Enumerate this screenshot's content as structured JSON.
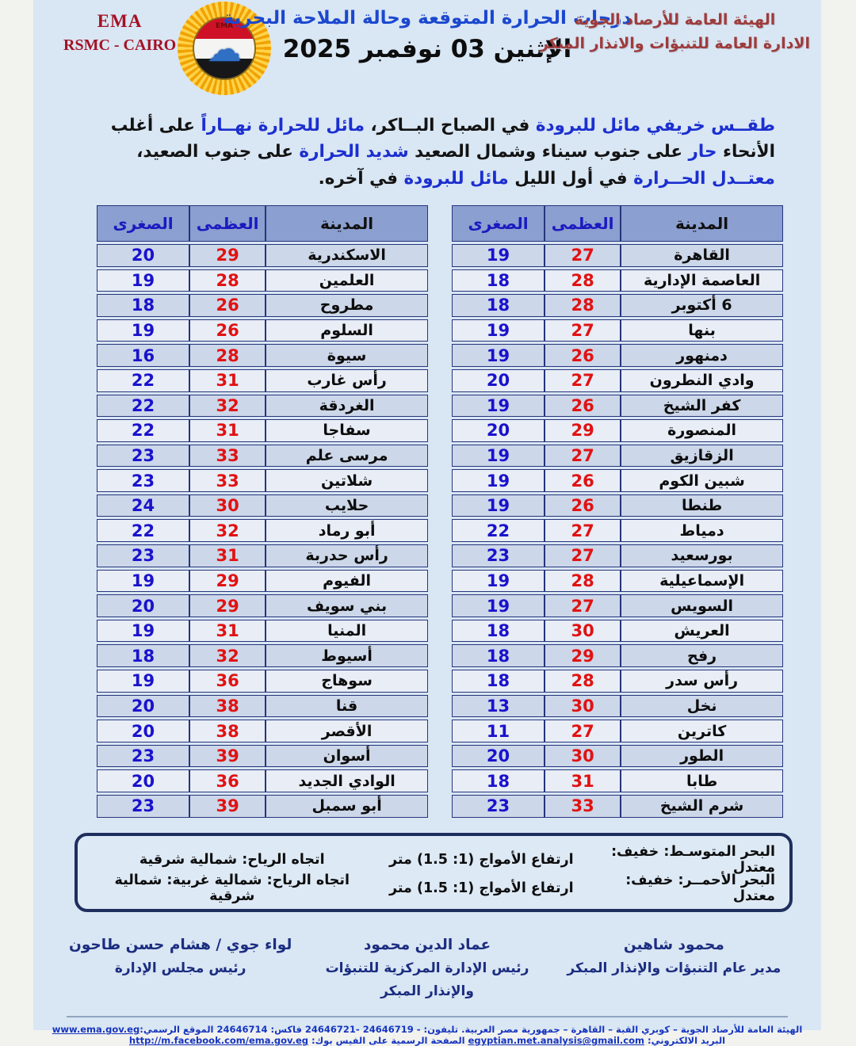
{
  "header": {
    "ema_label": "EMA",
    "rsmc_label": "RSMC - CAIRO",
    "logo_text": "EMA",
    "title": "درجات الحرارة المتوقعة وحالة الملاحة البحرية",
    "date": "الإثنين 03 نوفمبر 2025",
    "org_line1": "الهيئة العامة للأرصاد الجوية",
    "org_line2": "الادارة العامة للتنبؤات والانذار المبكر"
  },
  "forecast": {
    "segments": [
      {
        "text": "طقــس خريفي مائل للبرودة ",
        "color": "blue"
      },
      {
        "text": "في الصباح البــاكر، ",
        "color": "black"
      },
      {
        "text": "مائل للحرارة نهــاراً ",
        "color": "blue"
      },
      {
        "text": "على أغلب الأنحاء ",
        "color": "black"
      },
      {
        "text": "حار ",
        "color": "blue"
      },
      {
        "text": "على جنوب سيناء وشمال الصعيد ",
        "color": "black"
      },
      {
        "text": "شديد الحرارة ",
        "color": "blue"
      },
      {
        "text": "على جنوب الصعيد، ",
        "color": "black"
      },
      {
        "text": "معتــدل الحــرارة ",
        "color": "blue"
      },
      {
        "text": "في أول الليل ",
        "color": "black"
      },
      {
        "text": "مائل للبرودة ",
        "color": "blue"
      },
      {
        "text": "في آخره.",
        "color": "black"
      }
    ]
  },
  "tables": {
    "headers": {
      "city": "المدينة",
      "max": "العظمى",
      "min": "الصغرى"
    },
    "right_table": {
      "rows": [
        {
          "city": "القاهرة",
          "max": 27,
          "min": 19
        },
        {
          "city": "العاصمة الإدارية",
          "max": 28,
          "min": 18
        },
        {
          "city": "6 أكتوبر",
          "max": 28,
          "min": 18
        },
        {
          "city": "بنها",
          "max": 27,
          "min": 19
        },
        {
          "city": "دمنهور",
          "max": 26,
          "min": 19
        },
        {
          "city": "وادي النطرون",
          "max": 27,
          "min": 20
        },
        {
          "city": "كفر الشيخ",
          "max": 26,
          "min": 19
        },
        {
          "city": "المنصورة",
          "max": 29,
          "min": 20
        },
        {
          "city": "الزقازيق",
          "max": 27,
          "min": 19
        },
        {
          "city": "شبين الكوم",
          "max": 26,
          "min": 19
        },
        {
          "city": "طنطا",
          "max": 26,
          "min": 19
        },
        {
          "city": "دمياط",
          "max": 27,
          "min": 22
        },
        {
          "city": "بورسعيد",
          "max": 27,
          "min": 23
        },
        {
          "city": "الإسماعيلية",
          "max": 28,
          "min": 19
        },
        {
          "city": "السويس",
          "max": 27,
          "min": 19
        },
        {
          "city": "العريش",
          "max": 30,
          "min": 18
        },
        {
          "city": "رفح",
          "max": 29,
          "min": 18
        },
        {
          "city": "رأس سدر",
          "max": 28,
          "min": 18
        },
        {
          "city": "نخل",
          "max": 30,
          "min": 13
        },
        {
          "city": "كاترين",
          "max": 27,
          "min": 11
        },
        {
          "city": "الطور",
          "max": 30,
          "min": 20
        },
        {
          "city": "طابا",
          "max": 31,
          "min": 18
        },
        {
          "city": "شرم الشيخ",
          "max": 33,
          "min": 23
        }
      ]
    },
    "left_table": {
      "rows": [
        {
          "city": "الاسكندرية",
          "max": 29,
          "min": 20
        },
        {
          "city": "العلمين",
          "max": 28,
          "min": 19
        },
        {
          "city": "مطروح",
          "max": 26,
          "min": 18
        },
        {
          "city": "السلوم",
          "max": 26,
          "min": 19
        },
        {
          "city": "سيوة",
          "max": 28,
          "min": 16
        },
        {
          "city": "رأس غارب",
          "max": 31,
          "min": 22
        },
        {
          "city": "الغردقة",
          "max": 32,
          "min": 22
        },
        {
          "city": "سفاجا",
          "max": 31,
          "min": 22
        },
        {
          "city": "مرسى علم",
          "max": 33,
          "min": 23
        },
        {
          "city": "شلاتين",
          "max": 33,
          "min": 23
        },
        {
          "city": "حلايب",
          "max": 30,
          "min": 24
        },
        {
          "city": "أبو رماد",
          "max": 32,
          "min": 22
        },
        {
          "city": "رأس حدربة",
          "max": 31,
          "min": 23
        },
        {
          "city": "الفيوم",
          "max": 29,
          "min": 19
        },
        {
          "city": "بني سويف",
          "max": 29,
          "min": 20
        },
        {
          "city": "المنيا",
          "max": 31,
          "min": 19
        },
        {
          "city": "أسيوط",
          "max": 32,
          "min": 18
        },
        {
          "city": "سوهاج",
          "max": 36,
          "min": 19
        },
        {
          "city": "قنا",
          "max": 38,
          "min": 20
        },
        {
          "city": "الأقصر",
          "max": 38,
          "min": 20
        },
        {
          "city": "أسوان",
          "max": 39,
          "min": 23
        },
        {
          "city": "الوادي الجديد",
          "max": 36,
          "min": 20
        },
        {
          "city": "أبو سمبل",
          "max": 39,
          "min": 23
        }
      ]
    }
  },
  "marine": {
    "rows": [
      {
        "sea": "البحر المتوسـط: خفيف: معتدل",
        "waves": "ارتفاع الأمواج (1: 1.5) متر",
        "wind": "اتجاه الرياح: شمالية شرقية"
      },
      {
        "sea": "البحر الأحمــر: خفيف: معتدل",
        "waves": "ارتفاع الأمواج (1: 1.5) متر",
        "wind": "اتجاه الرياح: شمالية غربية: شمالية شرقية"
      }
    ]
  },
  "signatures": [
    {
      "name": "محمود شاهين",
      "title": "مدير عام التنبؤات والإنذار المبكر"
    },
    {
      "name": "عماد الدين محمود",
      "title": "رئيس الإدارة المركزية للتنبؤات والإنذار المبكر"
    },
    {
      "name": "لواء جوي / هشام حسن طاحون",
      "title": "رئيس مجلس الإدارة"
    }
  ],
  "contact": {
    "segments": [
      {
        "text": "الهيئة العامة للأرصاد الجوية – كوبري القبة – القاهرة – جمهورية مصر العربية. تليفون: - 24646719 -24646721 فاكس: 24646714 الموقع الرسمي:",
        "link": false
      },
      {
        "text": "www.ema.gov.eg",
        "link": true
      },
      {
        "text": " البريد الالكتروني: ",
        "link": false
      },
      {
        "text": "egyptian.met.analysis@gmail.com",
        "link": true
      },
      {
        "text": " الصفحة الرسمية على الفيس بوك: ",
        "link": false
      },
      {
        "text": "http://m.facebook.com/ema.gov.eg",
        "link": true
      }
    ]
  },
  "colors": {
    "page_bg": "#d9e6f3",
    "table_header_bg": "#8b9fd0",
    "row_dark": "#ccd7e9",
    "row_light": "#e8edf6",
    "min_temp_blue": "#1a12cc",
    "max_temp_red": "#e11212",
    "title_blue": "#1b48cf",
    "brand_red": "#a31225",
    "org_maroon": "#9e3b3b",
    "signature_navy": "#1b2d80",
    "contact_blue": "#1535c0"
  }
}
